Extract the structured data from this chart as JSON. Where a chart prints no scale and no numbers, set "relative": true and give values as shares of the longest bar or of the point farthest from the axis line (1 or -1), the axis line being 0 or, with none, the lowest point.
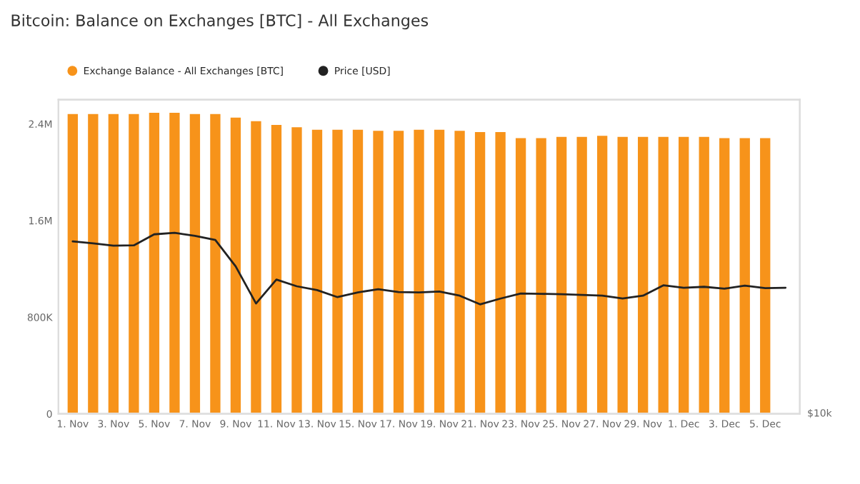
{
  "chart_data": [
    {
      "type": "bar",
      "title": "Bitcoin: Balance on Exchanges [BTC] - All Exchanges",
      "categories": [
        "1. Nov",
        null,
        "3. Nov",
        null,
        "5. Nov",
        null,
        "7. Nov",
        null,
        "9. Nov",
        null,
        "11. Nov",
        null,
        "13. Nov",
        null,
        "15. Nov",
        null,
        "17. Nov",
        null,
        "19. Nov",
        null,
        "21. Nov",
        null,
        "23. Nov",
        null,
        "25. Nov",
        null,
        "27. Nov",
        null,
        "29. Nov",
        null,
        "1. Dec",
        null,
        "3. Dec",
        null,
        "5. Dec",
        null
      ],
      "series": [
        {
          "name": "Exchange Balance - All Exchanges [BTC]",
          "color": "#f7931a",
          "values": [
            2490000,
            2490000,
            2490000,
            2490000,
            2500000,
            2500000,
            2490000,
            2490000,
            2460000,
            2430000,
            2400000,
            2380000,
            2360000,
            2360000,
            2360000,
            2350000,
            2350000,
            2360000,
            2360000,
            2350000,
            2340000,
            2340000,
            2290000,
            2290000,
            2300000,
            2300000,
            2310000,
            2300000,
            2300000,
            2300000,
            2300000,
            2300000,
            2290000,
            2290000,
            2290000,
            null
          ]
        }
      ],
      "ylim": [
        0,
        2600000
      ],
      "yticks": [
        {
          "value": 0,
          "label": "0"
        },
        {
          "value": 800000,
          "label": "800K"
        },
        {
          "value": 1600000,
          "label": "1.6M"
        },
        {
          "value": 2400000,
          "label": "2.4M"
        }
      ],
      "legend": "top left"
    },
    {
      "type": "line",
      "relative": true,
      "categories": [
        null,
        null,
        null,
        null,
        null,
        null,
        null,
        null,
        null,
        null,
        null,
        null,
        null,
        null,
        null,
        null,
        null,
        null,
        null,
        null,
        null,
        null,
        null,
        null,
        null,
        null,
        null,
        null,
        null,
        null,
        null,
        null,
        null,
        null,
        null,
        null
      ],
      "series": [
        {
          "name": "Price [USD]",
          "color": "#222222",
          "values": [
            0.953,
            0.942,
            0.929,
            0.931,
            0.992,
            1.0,
            0.984,
            0.961,
            0.815,
            0.61,
            0.742,
            0.705,
            0.684,
            0.645,
            0.671,
            0.689,
            0.673,
            0.671,
            0.676,
            0.653,
            0.605,
            0.637,
            0.665,
            0.663,
            0.661,
            0.657,
            0.653,
            0.637,
            0.653,
            0.71,
            0.697,
            0.702,
            0.692,
            0.708,
            0.695,
            0.697
          ]
        }
      ],
      "annotations": [
        "$10k"
      ],
      "legend": "top left",
      "marker": "none",
      "line_style": "solid"
    }
  ]
}
